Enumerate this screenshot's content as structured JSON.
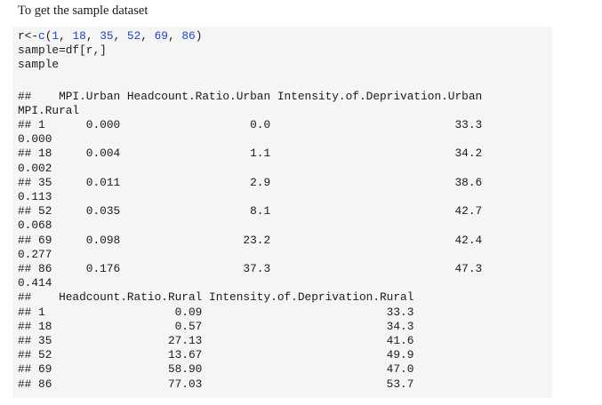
{
  "colors": {
    "page": "#ffffff",
    "background_code": "#f5f5f5",
    "text": "#1a1a1a",
    "function_call": "#2045c5",
    "number": "#2045c5"
  },
  "intro": {
    "text": "To get the sample dataset"
  },
  "code_block": {
    "line1_tokens": [
      {
        "text": "r<-",
        "type": "plain"
      },
      {
        "text": "c",
        "type": "function_call"
      },
      {
        "text": "(",
        "type": "plain"
      },
      {
        "text": "1",
        "type": "number"
      },
      {
        "text": ", ",
        "type": "plain"
      },
      {
        "text": "18",
        "type": "number"
      },
      {
        "text": ", ",
        "type": "plain"
      },
      {
        "text": "35",
        "type": "number"
      },
      {
        "text": ", ",
        "type": "plain"
      },
      {
        "text": "52",
        "type": "number"
      },
      {
        "text": ", ",
        "type": "plain"
      },
      {
        "text": "69",
        "type": "number"
      },
      {
        "text": ", ",
        "type": "plain"
      },
      {
        "text": "86",
        "type": "number"
      },
      {
        "text": ")",
        "type": "plain"
      }
    ],
    "line2": "sample=df[r,]",
    "line3": "sample"
  },
  "console_output": {
    "lines": [
      "##    MPI.Urban Headcount.Ratio.Urban Intensity.of.Deprivation.Urban",
      "MPI.Rural",
      "## 1      0.000                   0.0                           33.3",
      "0.000",
      "## 18     0.004                   1.1                           34.2",
      "0.002",
      "## 35     0.011                   2.9                           38.6",
      "0.113",
      "## 52     0.035                   8.1                           42.7",
      "0.068",
      "## 69     0.098                  23.2                           42.4",
      "0.277",
      "## 86     0.176                  37.3                           47.3",
      "0.414",
      "##    Headcount.Ratio.Rural Intensity.of.Deprivation.Rural",
      "## 1                   0.09                           33.3",
      "## 18                  0.57                           34.3",
      "## 35                 27.13                           41.6",
      "## 52                 13.67                           49.9",
      "## 69                 58.90                           47.0",
      "## 86                 77.03                           53.7"
    ]
  },
  "console_tables": [
    {
      "columns": [
        "",
        "MPI.Urban",
        "Headcount.Ratio.Urban",
        "Intensity.of.Deprivation.Urban",
        "MPI.Rural"
      ],
      "rows": [
        [
          "1",
          "0.000",
          "0.0",
          "33.3",
          "0.000"
        ],
        [
          "18",
          "0.004",
          "1.1",
          "34.2",
          "0.002"
        ],
        [
          "35",
          "0.011",
          "2.9",
          "38.6",
          "0.113"
        ],
        [
          "52",
          "0.035",
          "8.1",
          "42.7",
          "0.068"
        ],
        [
          "69",
          "0.098",
          "23.2",
          "42.4",
          "0.277"
        ],
        [
          "86",
          "0.176",
          "37.3",
          "47.3",
          "0.414"
        ]
      ]
    },
    {
      "columns": [
        "",
        "Headcount.Ratio.Rural",
        "Intensity.of.Deprivation.Rural"
      ],
      "rows": [
        [
          "1",
          "0.09",
          "33.3"
        ],
        [
          "18",
          "0.57",
          "34.3"
        ],
        [
          "35",
          "27.13",
          "41.6"
        ],
        [
          "52",
          "13.67",
          "49.9"
        ],
        [
          "69",
          "58.90",
          "47.0"
        ],
        [
          "86",
          "77.03",
          "53.7"
        ]
      ]
    }
  ]
}
